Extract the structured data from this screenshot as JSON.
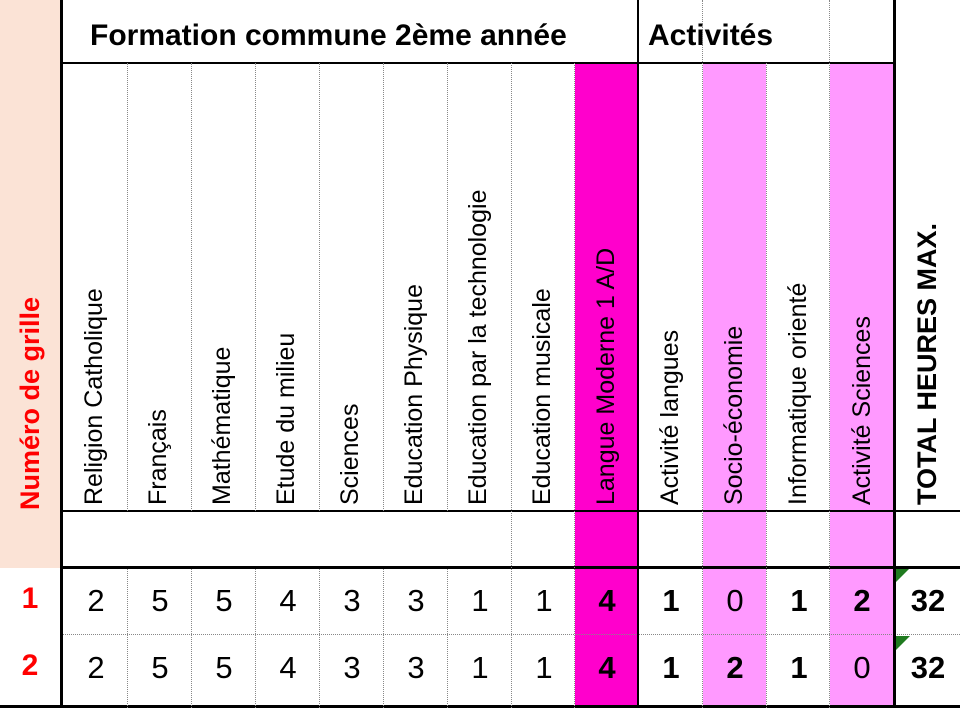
{
  "header": {
    "group_formation": "Formation commune 2ème année",
    "group_activites": "Activités",
    "row_label": "Numéro de grille"
  },
  "columns": [
    {
      "label": "Religion Catholique",
      "fill": "none"
    },
    {
      "label": "Français",
      "fill": "none"
    },
    {
      "label": "Mathématique",
      "fill": "none"
    },
    {
      "label": "Etude du milieu",
      "fill": "none"
    },
    {
      "label": "Sciences",
      "fill": "none"
    },
    {
      "label": "Education Physique",
      "fill": "none"
    },
    {
      "label": "Education par la technologie",
      "fill": "none"
    },
    {
      "label": "Education musicale",
      "fill": "none"
    },
    {
      "label": "Langue Moderne 1 A/D",
      "fill": "#ff00cc"
    },
    {
      "label": "Activité langues",
      "fill": "none"
    },
    {
      "label": "Socio-économie",
      "fill": "#ff99ff"
    },
    {
      "label": "Informatique orienté",
      "fill": "none"
    },
    {
      "label": "Activité Sciences",
      "fill": "#ff99ff"
    },
    {
      "label": "TOTAL HEURES MAX.",
      "fill": "none"
    }
  ],
  "rows": [
    {
      "num": "1",
      "values": [
        "2",
        "5",
        "5",
        "4",
        "3",
        "3",
        "1",
        "1",
        "4",
        "1",
        "0",
        "1",
        "2",
        "32"
      ]
    },
    {
      "num": "2",
      "values": [
        "2",
        "5",
        "5",
        "4",
        "3",
        "3",
        "1",
        "1",
        "4",
        "1",
        "2",
        "1",
        "0",
        "32"
      ]
    }
  ],
  "colors": {
    "row_number": "#ff0000",
    "peach": "#fbe3d6",
    "magenta": "#ff00cc",
    "pink": "#ff99ff",
    "flag": "#1f7a1f"
  }
}
